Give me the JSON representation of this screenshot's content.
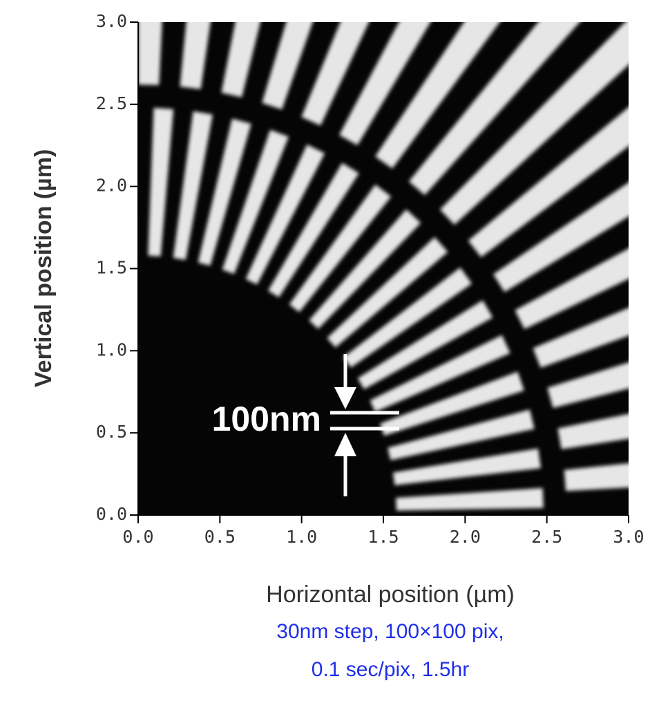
{
  "chart_data": {
    "type": "image",
    "xlabel": "Horizontal position  (µm)",
    "ylabel": "Vertical position  (µm)",
    "xlim": [
      0,
      3
    ],
    "ylim": [
      0,
      3
    ],
    "xticks": [
      {
        "value": 0,
        "label": "0.0"
      },
      {
        "value": 0.5,
        "label": "0.5"
      },
      {
        "value": 1,
        "label": "1.0"
      },
      {
        "value": 1.5,
        "label": "1.5"
      },
      {
        "value": 2,
        "label": "2.0"
      },
      {
        "value": 2.5,
        "label": "2.5"
      },
      {
        "value": 3,
        "label": "3.0"
      }
    ],
    "yticks": [
      {
        "value": 0,
        "label": "0.0"
      },
      {
        "value": 0.5,
        "label": "0.5"
      },
      {
        "value": 1,
        "label": "1.0"
      },
      {
        "value": 1.5,
        "label": "1.5"
      },
      {
        "value": 2,
        "label": "2.0"
      },
      {
        "value": 2.5,
        "label": "2.5"
      },
      {
        "value": 3,
        "label": "3.0"
      }
    ],
    "annotation": "100nm",
    "caption": [
      "30nm step, 100×100 pix,",
      "0.1 sec/pix, 1.5hr"
    ]
  }
}
